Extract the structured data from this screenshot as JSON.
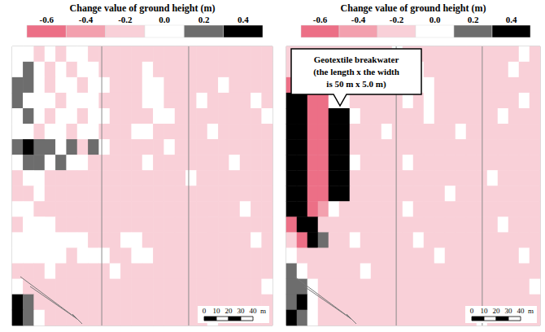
{
  "chart_data": [
    {
      "type": "heatmap",
      "title": "Change value of ground height (m)",
      "tick_labels": false,
      "colorbar": {
        "ticks": [
          -0.6,
          -0.4,
          -0.2,
          {
            "value": 0,
            "label": "0.0"
          },
          0.2,
          0.4
        ],
        "colors": [
          "#ec6f86",
          "#f3a0ae",
          "#f9d0d8",
          "#ffffff",
          "#6d6d6d",
          "#000000"
        ]
      },
      "scale_bar": {
        "ticks": [
          0,
          10,
          20,
          30,
          40
        ],
        "unit": "m"
      },
      "cells": [
        [
          0,
          0,
          -0.2,
          0,
          -0.2,
          0,
          0,
          -0.2,
          -0.2,
          -0.2,
          -0.2,
          -0.2,
          -0.2,
          -0.2,
          -0.2,
          -0.2,
          -0.2,
          -0.2,
          -0.2,
          -0.2,
          -0.2,
          -0.2,
          -0.2,
          -0.2
        ],
        [
          0,
          0.2,
          0,
          -0.2,
          0,
          -0.2,
          0,
          0,
          -0.2,
          -0.2,
          -0.2,
          -0.2,
          0,
          -0.2,
          -0.2,
          -0.2,
          -0.2,
          -0.2,
          -0.2,
          -0.2,
          -0.2,
          -0.2,
          -0.2,
          -0.2
        ],
        [
          0.2,
          0.2,
          0,
          -0.2,
          0,
          0,
          -0.2,
          0,
          0,
          -0.2,
          -0.2,
          -0.2,
          0,
          0,
          -0.2,
          -0.2,
          -0.2,
          -0.2,
          -0.2,
          0,
          -0.2,
          -0.2,
          -0.2,
          -0.2
        ],
        [
          0.2,
          0,
          0,
          0,
          -0.2,
          0,
          0,
          0,
          -0.2,
          -0.2,
          -0.2,
          -0.2,
          0,
          0,
          -0.2,
          -0.2,
          -0.2,
          0,
          -0.2,
          -0.2,
          -0.2,
          -0.2,
          0,
          -0.2
        ],
        [
          0,
          0.2,
          0,
          -0.2,
          0,
          0,
          -0.2,
          0,
          0,
          -0.2,
          -0.2,
          -0.2,
          -0.2,
          0,
          0,
          -0.2,
          -0.2,
          -0.2,
          -0.2,
          -0.2,
          -0.2,
          -0.2,
          -0.2,
          0
        ],
        [
          0,
          0,
          -0.2,
          0,
          0,
          -0.2,
          0,
          0,
          -0.2,
          -0.2,
          -0.2,
          0,
          0,
          -0.2,
          -0.2,
          -0.2,
          -0.2,
          -0.2,
          0,
          -0.2,
          -0.2,
          -0.2,
          -0.2,
          -0.2
        ],
        [
          0.2,
          0.4,
          0.2,
          0.2,
          0,
          0.2,
          -0.2,
          0.2,
          0,
          -0.2,
          -0.2,
          -0.2,
          -0.2,
          -0.2,
          0,
          -0.2,
          -0.2,
          -0.2,
          -0.2,
          -0.2,
          -0.2,
          -0.2,
          -0.2,
          -0.2
        ],
        [
          0,
          0.2,
          0.2,
          0,
          0.2,
          0,
          0,
          -0.2,
          -0.2,
          -0.2,
          -0.2,
          -0.2,
          0,
          -0.2,
          -0.2,
          -0.2,
          -0.2,
          -0.2,
          -0.2,
          -0.2,
          0,
          -0.2,
          -0.2,
          -0.2
        ],
        [
          -0.2,
          0,
          0,
          -0.2,
          -0.2,
          -0.2,
          -0.2,
          -0.2,
          -0.2,
          -0.2,
          -0.2,
          -0.2,
          -0.2,
          -0.2,
          -0.2,
          -0.2,
          0,
          -0.2,
          -0.2,
          -0.2,
          -0.2,
          -0.2,
          -0.2,
          -0.2
        ],
        [
          -0.2,
          -0.2,
          0,
          -0.2,
          -0.2,
          -0.2,
          -0.2,
          -0.2,
          -0.2,
          -0.2,
          -0.2,
          -0.2,
          -0.2,
          -0.2,
          -0.2,
          -0.2,
          -0.2,
          -0.2,
          -0.2,
          -0.2,
          -0.2,
          -0.2,
          -0.2,
          -0.2
        ],
        [
          0,
          0,
          -0.2,
          -0.2,
          -0.2,
          -0.2,
          -0.2,
          -0.2,
          -0.2,
          -0.2,
          -0.2,
          -0.2,
          -0.2,
          -0.2,
          -0.2,
          -0.2,
          -0.2,
          -0.2,
          -0.2,
          -0.2,
          -0.2,
          0,
          -0.2,
          -0.2
        ],
        [
          -0.2,
          0,
          0,
          0,
          -0.2,
          -0.2,
          -0.2,
          -0.2,
          -0.2,
          -0.2,
          -0.2,
          -0.2,
          -0.2,
          -0.2,
          -0.2,
          -0.2,
          -0.2,
          -0.2,
          -0.2,
          -0.2,
          -0.2,
          -0.2,
          -0.2,
          -0.2
        ],
        [
          0,
          0,
          0,
          0,
          0,
          0,
          0,
          -0.2,
          -0.2,
          -0.2,
          0,
          0,
          -0.2,
          -0.2,
          -0.2,
          -0.2,
          -0.2,
          -0.2,
          -0.2,
          -0.2,
          -0.2,
          -0.2,
          0,
          -0.2
        ],
        [
          0,
          0,
          0,
          0,
          0,
          -0.2,
          0,
          0,
          0,
          -0.2,
          -0.2,
          0,
          0,
          -0.2,
          -0.2,
          -0.2,
          -0.2,
          -0.2,
          -0.2,
          -0.2,
          -0.2,
          -0.2,
          -0.2,
          -0.2
        ],
        [
          -0.2,
          -0.2,
          -0.2,
          0,
          -0.2,
          -0.2,
          -0.2,
          -0.2,
          -0.2,
          0,
          -0.2,
          -0.2,
          -0.2,
          -0.2,
          -0.2,
          -0.2,
          -0.2,
          -0.2,
          -0.2,
          -0.2,
          -0.2,
          -0.2,
          -0.2,
          -0.2
        ],
        [
          0,
          -0.2,
          -0.2,
          -0.2,
          -0.2,
          -0.2,
          -0.2,
          -0.2,
          -0.2,
          -0.2,
          -0.2,
          -0.2,
          -0.2,
          -0.2,
          -0.2,
          -0.2,
          -0.2,
          -0.2,
          -0.2,
          -0.2,
          -0.2,
          -0.2,
          -0.2,
          0
        ],
        [
          0.4,
          0.2,
          -0.2,
          -0.2,
          -0.2,
          -0.2,
          -0.2,
          -0.2,
          -0.2,
          -0.2,
          -0.2,
          -0.2,
          -0.2,
          -0.2,
          -0.2,
          -0.2,
          -0.2,
          -0.2,
          -0.2,
          -0.2,
          -0.2,
          -0.2,
          -0.2,
          -0.2
        ],
        [
          0.4,
          0.2,
          0,
          -0.2,
          -0.2,
          -0.2,
          -0.2,
          -0.2,
          -0.2,
          -0.2,
          -0.2,
          -0.2,
          -0.2,
          -0.2,
          -0.2,
          -0.2,
          -0.2,
          -0.2,
          0,
          -0.2,
          -0.2,
          -0.2,
          -0.2,
          -0.2
        ]
      ]
    },
    {
      "type": "heatmap",
      "title": "Change value of ground height (m)",
      "tick_labels": false,
      "colorbar": {
        "ticks": [
          -0.6,
          -0.4,
          -0.2,
          {
            "value": 0,
            "label": "0.0"
          },
          0.2,
          0.4
        ],
        "colors": [
          "#ec6f86",
          "#f3a0ae",
          "#f9d0d8",
          "#ffffff",
          "#6d6d6d",
          "#000000"
        ]
      },
      "scale_bar": {
        "ticks": [
          0,
          10,
          20,
          30,
          40
        ],
        "unit": "m"
      },
      "annotation": [
        "Geotextile breakwater",
        "(the length x the width",
        "is 50 m x 5.0 m)"
      ],
      "cells": [
        [
          -0.2,
          -0.2,
          -0.2,
          -0.2,
          -0.2,
          -0.2,
          -0.2,
          -0.2,
          -0.2,
          -0.2,
          0,
          -0.2,
          -0.2,
          -0.2,
          -0.2,
          -0.2,
          -0.2,
          -0.2,
          -0.2,
          -0.2,
          -0.2,
          -0.2,
          0,
          -0.2
        ],
        [
          -0.2,
          -0.2,
          -0.2,
          -0.2,
          -0.2,
          -0.2,
          -0.2,
          -0.2,
          -0.2,
          -0.2,
          -0.2,
          -0.2,
          0,
          -0.2,
          -0.2,
          -0.2,
          -0.2,
          -0.2,
          -0.2,
          -0.2,
          -0.2,
          0,
          -0.2,
          -0.2
        ],
        [
          -0.6,
          0.4,
          -0.6,
          -0.2,
          -0.2,
          -0.2,
          0,
          0.2,
          -0.2,
          -0.2,
          -0.2,
          -0.2,
          0,
          0,
          -0.2,
          -0.2,
          -0.2,
          -0.2,
          -0.2,
          -0.2,
          -0.2,
          -0.2,
          -0.2,
          -0.2
        ],
        [
          0.4,
          0.4,
          -0.6,
          -0.6,
          0,
          0,
          -0.2,
          -0.2,
          -0.2,
          -0.2,
          -0.2,
          0,
          -0.2,
          0,
          -0.2,
          -0.2,
          -0.2,
          -0.2,
          -0.2,
          -0.2,
          -0.2,
          -0.2,
          0,
          -0.2
        ],
        [
          0.4,
          0.4,
          -0.6,
          -0.6,
          0.4,
          0.4,
          0,
          -0.2,
          -0.2,
          -0.2,
          -0.2,
          -0.2,
          -0.2,
          0,
          -0.2,
          -0.2,
          -0.2,
          -0.2,
          -0.2,
          -0.2,
          0,
          -0.2,
          -0.2,
          -0.2
        ],
        [
          0.4,
          0.4,
          -0.6,
          -0.6,
          0.4,
          0.4,
          -0.2,
          -0.2,
          -0.2,
          0,
          -0.2,
          -0.2,
          -0.2,
          -0.2,
          -0.2,
          -0.2,
          0,
          -0.2,
          -0.2,
          -0.2,
          -0.2,
          -0.2,
          -0.2,
          -0.2
        ],
        [
          0.4,
          0.4,
          -0.6,
          -0.6,
          0.4,
          0.4,
          -0.2,
          -0.2,
          -0.2,
          -0.2,
          -0.2,
          -0.2,
          -0.2,
          -0.2,
          -0.2,
          -0.2,
          -0.2,
          -0.2,
          -0.2,
          -0.2,
          -0.2,
          -0.2,
          -0.2,
          -0.2
        ],
        [
          0.4,
          0.4,
          -0.6,
          -0.6,
          0.4,
          0.4,
          0,
          -0.2,
          -0.2,
          -0.2,
          -0.2,
          0,
          -0.2,
          -0.2,
          -0.2,
          -0.2,
          -0.2,
          -0.2,
          -0.2,
          -0.2,
          -0.2,
          -0.2,
          -0.2,
          -0.2
        ],
        [
          0.4,
          0.4,
          -0.6,
          -0.6,
          0.4,
          0.4,
          -0.2,
          -0.2,
          -0.2,
          -0.2,
          -0.2,
          -0.2,
          -0.2,
          -0.2,
          -0.2,
          -0.2,
          -0.2,
          -0.2,
          -0.2,
          0,
          -0.2,
          -0.2,
          -0.2,
          -0.2
        ],
        [
          0.4,
          0.4,
          -0.6,
          -0.6,
          0.4,
          0.4,
          -0.2,
          -0.2,
          -0.2,
          -0.2,
          -0.2,
          -0.2,
          -0.2,
          -0.2,
          -0.2,
          0,
          -0.2,
          -0.2,
          -0.2,
          -0.2,
          -0.2,
          -0.2,
          -0.2,
          -0.2
        ],
        [
          0.4,
          0.4,
          -0.6,
          -0.4,
          0,
          -0.2,
          -0.2,
          -0.2,
          -0.2,
          -0.2,
          -0.2,
          0,
          -0.2,
          -0.2,
          -0.2,
          -0.2,
          -0.2,
          -0.2,
          -0.2,
          -0.2,
          -0.2,
          -0.2,
          -0.2,
          -0.2
        ],
        [
          -0.6,
          0.4,
          0.4,
          -0.2,
          -0.2,
          -0.2,
          -0.2,
          -0.2,
          -0.2,
          -0.2,
          -0.2,
          -0.2,
          -0.2,
          -0.2,
          -0.2,
          -0.2,
          -0.2,
          -0.2,
          -0.2,
          -0.2,
          0,
          -0.2,
          -0.2,
          -0.2
        ],
        [
          -0.2,
          -0.6,
          0.4,
          0.2,
          -0.2,
          -0.2,
          0,
          -0.2,
          -0.2,
          -0.2,
          -0.2,
          -0.2,
          0,
          -0.2,
          -0.2,
          -0.2,
          -0.2,
          -0.2,
          -0.2,
          -0.2,
          -0.2,
          -0.2,
          -0.2,
          -0.2
        ],
        [
          0,
          -0.2,
          -0.2,
          -0.2,
          -0.2,
          -0.2,
          -0.2,
          -0.2,
          -0.2,
          -0.2,
          -0.2,
          -0.2,
          -0.2,
          -0.2,
          0,
          -0.2,
          -0.2,
          -0.2,
          -0.2,
          -0.2,
          -0.2,
          -0.2,
          0,
          -0.2
        ],
        [
          0.2,
          0,
          -0.2,
          -0.2,
          -0.2,
          -0.2,
          -0.2,
          0,
          -0.2,
          -0.2,
          -0.2,
          -0.2,
          -0.2,
          -0.2,
          -0.2,
          -0.2,
          -0.2,
          -0.2,
          -0.2,
          -0.2,
          -0.2,
          -0.2,
          -0.2,
          -0.2
        ],
        [
          0.2,
          0.2,
          0,
          -0.2,
          -0.2,
          -0.2,
          -0.2,
          -0.2,
          -0.2,
          -0.2,
          -0.2,
          -0.2,
          -0.2,
          -0.2,
          -0.2,
          -0.2,
          -0.2,
          -0.2,
          -0.2,
          -0.2,
          -0.2,
          -0.2,
          -0.2,
          0
        ],
        [
          0.2,
          0.4,
          0,
          -0.2,
          -0.2,
          -0.2,
          -0.2,
          -0.2,
          -0.2,
          -0.2,
          -0.2,
          -0.2,
          -0.2,
          -0.2,
          -0.2,
          -0.2,
          -0.2,
          -0.2,
          -0.2,
          -0.2,
          -0.2,
          -0.2,
          -0.2,
          -0.2
        ],
        [
          0.4,
          0.2,
          0,
          -0.2,
          -0.2,
          -0.2,
          -0.2,
          -0.2,
          -0.2,
          -0.2,
          -0.2,
          -0.2,
          -0.2,
          -0.2,
          -0.2,
          -0.2,
          -0.2,
          -0.2,
          0,
          -0.2,
          -0.2,
          -0.2,
          -0.2,
          -0.2
        ]
      ]
    }
  ]
}
